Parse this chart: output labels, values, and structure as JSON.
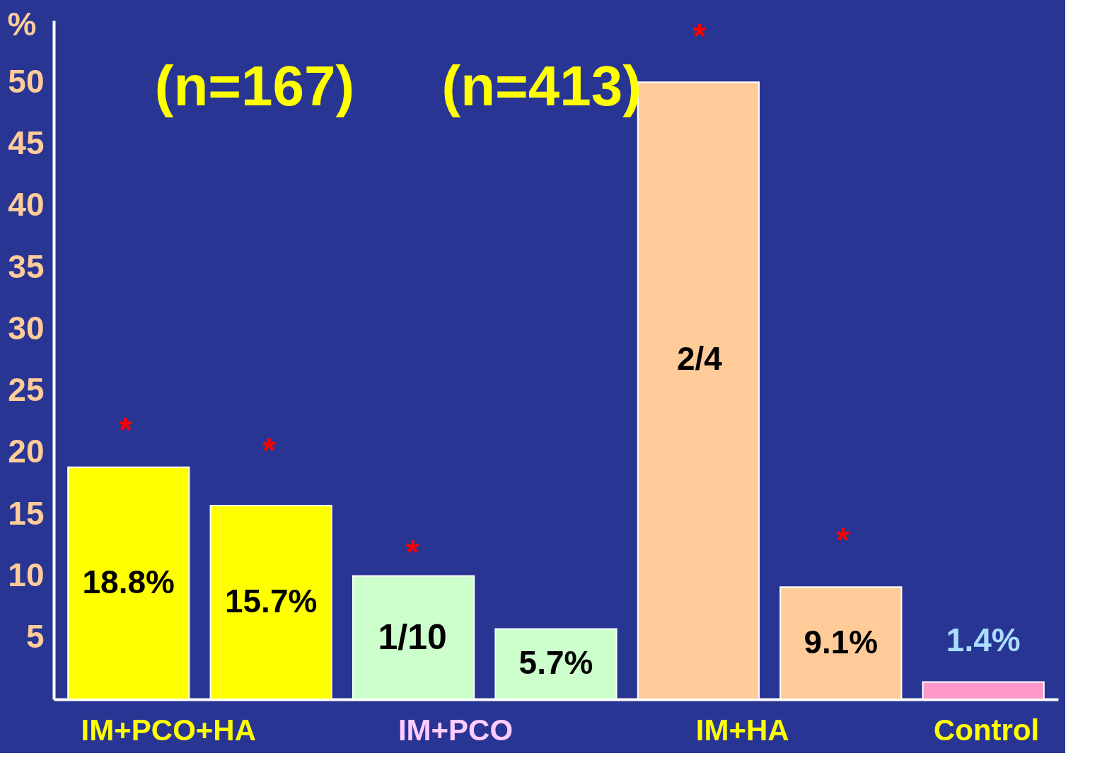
{
  "chart_data": {
    "type": "bar",
    "ylabel": "%",
    "categories": [
      "IM+PCO+HA",
      null,
      "IM+PCO",
      null,
      "IM+HA",
      null,
      "Control"
    ],
    "values": [
      18.8,
      15.7,
      10,
      5.7,
      50,
      9.1,
      1.4
    ],
    "colors": [
      "#ffff00",
      "#ffff00",
      "#ccffcc",
      "#ccffcc",
      "#ffcc99",
      "#ffcc99",
      "#ff99cc"
    ],
    "value_labels": [
      "18.8%",
      "15.7%",
      null,
      "5.7%",
      null,
      "9.1%",
      "1.4%"
    ],
    "ylim": [
      0,
      55
    ],
    "yticks": [
      5,
      10,
      15,
      20,
      25,
      30,
      35,
      40,
      45,
      50
    ],
    "annotations": [
      "(n=167)",
      "(n=413)",
      "*",
      "*",
      "*",
      "*",
      "*",
      "1/10",
      "2/4"
    ]
  }
}
